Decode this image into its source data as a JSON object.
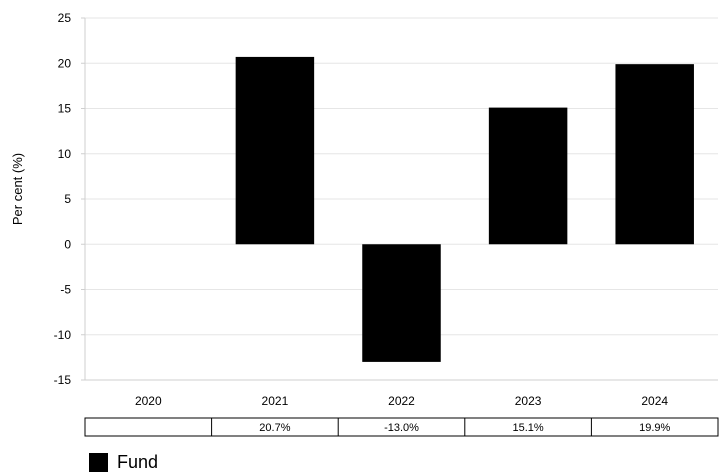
{
  "chart_data": {
    "type": "bar",
    "ylabel": "Per cent (%)",
    "ylim": [
      -15,
      25
    ],
    "yticks": [
      -15,
      -10,
      -5,
      0,
      5,
      10,
      15,
      20,
      25
    ],
    "grid": true,
    "categories": [
      "2020",
      "2021",
      "2022",
      "2023",
      "2024"
    ],
    "series": [
      {
        "name": "Fund",
        "color": "#000000",
        "values": [
          null,
          20.7,
          -13.0,
          15.1,
          19.9
        ],
        "table_labels": [
          "",
          "20.7%",
          "-13.0%",
          "15.1%",
          "19.9%"
        ]
      }
    ],
    "legend_position": "bottom-left"
  }
}
